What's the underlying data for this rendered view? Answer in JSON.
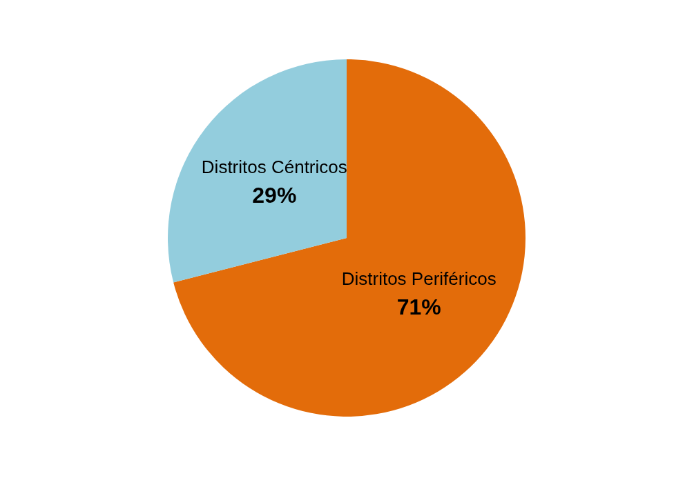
{
  "chart_data": {
    "type": "pie",
    "categories": [
      "Distritos Periféricos",
      "Distritos Céntricos"
    ],
    "values": [
      71,
      29
    ],
    "colors": [
      "#e36c0a",
      "#93cddd"
    ],
    "value_labels": [
      "71%",
      "29%"
    ],
    "legend": false
  }
}
